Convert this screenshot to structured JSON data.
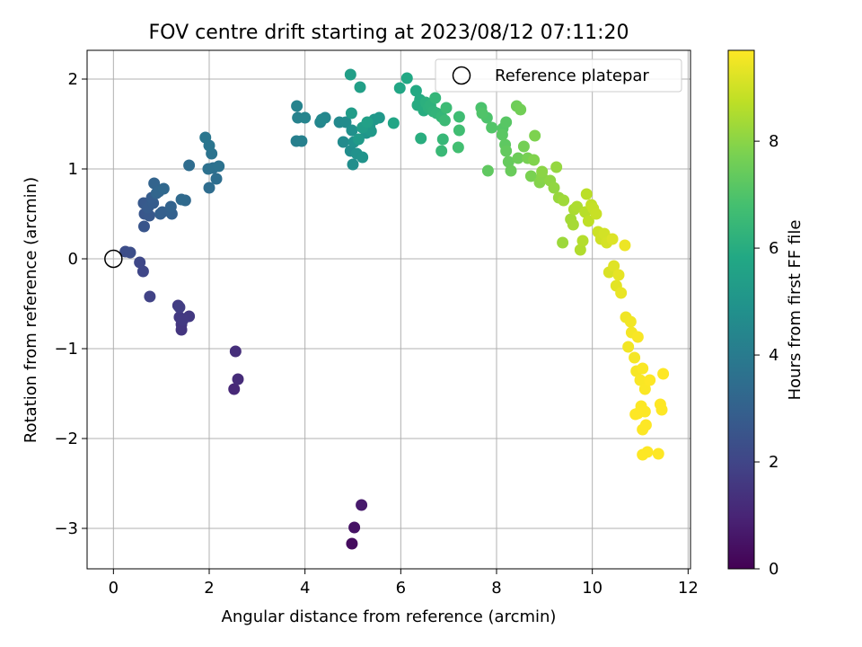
{
  "chart_data": {
    "type": "scatter",
    "title": "FOV centre drift starting at 2023/08/12 07:11:20",
    "xlabel": "Angular distance from reference (arcmin)",
    "ylabel": "Rotation from reference (arcmin)",
    "xlim": [
      -0.55,
      12.05
    ],
    "ylim": [
      -3.45,
      2.32
    ],
    "xticks": [
      0,
      2,
      4,
      6,
      8,
      10,
      12
    ],
    "xtick_labels": [
      "0",
      "2",
      "4",
      "6",
      "8",
      "10",
      "12"
    ],
    "yticks": [
      -3,
      -2,
      -1,
      0,
      1,
      2
    ],
    "ytick_labels": [
      "−3",
      "−2",
      "−1",
      "0",
      "1",
      "2"
    ],
    "grid": true,
    "legend": {
      "placement": "top-right",
      "label": "Reference platepar"
    },
    "reference_point": {
      "x": 0,
      "y": 0
    },
    "colorbar": {
      "label": "Hours from first FF file",
      "colormap": "viridis",
      "range": [
        0,
        9.7
      ],
      "ticks": [
        0,
        2,
        4,
        6,
        8
      ],
      "tick_labels": [
        "0",
        "2",
        "4",
        "6",
        "8"
      ]
    },
    "series": [
      {
        "points": [
          [
            4.98,
            -3.17,
            0.3
          ],
          [
            5.03,
            -2.99,
            0.5
          ],
          [
            5.18,
            -2.74,
            0.7
          ],
          [
            2.52,
            -1.45,
            1.1
          ],
          [
            2.6,
            -1.34,
            1.2
          ],
          [
            2.55,
            -1.03,
            1.3
          ],
          [
            1.42,
            -0.79,
            1.5
          ],
          [
            1.42,
            -0.73,
            1.55
          ],
          [
            1.38,
            -0.65,
            1.6
          ],
          [
            1.58,
            -0.64,
            1.6
          ],
          [
            1.45,
            -0.68,
            1.65
          ],
          [
            1.35,
            -0.52,
            1.7
          ],
          [
            1.38,
            -0.54,
            1.75
          ],
          [
            0.76,
            -0.42,
            1.9
          ],
          [
            0.62,
            -0.14,
            2.05
          ],
          [
            0.55,
            -0.04,
            2.1
          ],
          [
            0.25,
            0.08,
            2.25
          ],
          [
            0.35,
            0.07,
            2.3
          ],
          [
            0.64,
            0.36,
            2.55
          ],
          [
            0.65,
            0.5,
            2.6
          ],
          [
            0.75,
            0.48,
            2.65
          ],
          [
            0.63,
            0.62,
            2.7
          ],
          [
            0.72,
            0.57,
            2.75
          ],
          [
            0.83,
            0.62,
            2.8
          ],
          [
            0.8,
            0.68,
            2.85
          ],
          [
            0.98,
            0.5,
            2.9
          ],
          [
            1.02,
            0.52,
            2.95
          ],
          [
            1.22,
            0.5,
            3.0
          ],
          [
            1.2,
            0.58,
            3.05
          ],
          [
            0.85,
            0.84,
            3.1
          ],
          [
            0.9,
            0.73,
            3.15
          ],
          [
            0.95,
            0.75,
            3.2
          ],
          [
            1.05,
            0.78,
            3.25
          ],
          [
            1.5,
            0.65,
            3.3
          ],
          [
            1.42,
            0.66,
            3.35
          ],
          [
            1.58,
            1.04,
            3.4
          ],
          [
            2.0,
            0.79,
            3.45
          ],
          [
            2.15,
            0.89,
            3.5
          ],
          [
            2.08,
            1.01,
            3.55
          ],
          [
            1.98,
            1.0,
            3.6
          ],
          [
            2.2,
            1.03,
            3.65
          ],
          [
            2.05,
            1.17,
            3.7
          ],
          [
            2.0,
            1.26,
            3.75
          ],
          [
            1.92,
            1.35,
            3.8
          ],
          [
            3.82,
            1.31,
            4.15
          ],
          [
            3.93,
            1.31,
            4.2
          ],
          [
            3.85,
            1.57,
            4.25
          ],
          [
            3.83,
            1.7,
            4.3
          ],
          [
            4.0,
            1.57,
            4.35
          ],
          [
            4.32,
            1.52,
            4.4
          ],
          [
            4.42,
            1.57,
            4.45
          ],
          [
            4.35,
            1.55,
            4.5
          ],
          [
            4.72,
            1.52,
            4.55
          ],
          [
            4.8,
            1.3,
            4.6
          ],
          [
            4.85,
            1.52,
            4.65
          ],
          [
            4.95,
            1.2,
            4.7
          ],
          [
            5.0,
            1.05,
            4.75
          ],
          [
            4.98,
            1.43,
            4.8
          ],
          [
            5.02,
            1.3,
            4.85
          ],
          [
            5.08,
            1.17,
            4.9
          ],
          [
            5.2,
            1.13,
            4.95
          ],
          [
            5.28,
            1.4,
            5.0
          ],
          [
            5.35,
            1.47,
            5.05
          ],
          [
            5.45,
            1.55,
            5.1
          ],
          [
            5.55,
            1.57,
            5.15
          ],
          [
            5.38,
            1.42,
            5.2
          ],
          [
            5.12,
            1.33,
            5.25
          ],
          [
            4.97,
            1.62,
            5.3
          ],
          [
            5.2,
            1.46,
            5.35
          ],
          [
            4.95,
            2.05,
            5.4
          ],
          [
            5.15,
            1.91,
            5.45
          ],
          [
            5.3,
            1.52,
            5.5
          ],
          [
            5.85,
            1.51,
            5.7
          ],
          [
            5.98,
            1.9,
            5.75
          ],
          [
            6.13,
            2.01,
            5.8
          ],
          [
            6.32,
            1.87,
            5.85
          ],
          [
            6.4,
            1.77,
            5.9
          ],
          [
            6.35,
            1.71,
            5.95
          ],
          [
            6.48,
            1.65,
            6.0
          ],
          [
            6.42,
            1.34,
            6.05
          ],
          [
            6.52,
            1.74,
            6.1
          ],
          [
            6.58,
            1.68,
            6.15
          ],
          [
            6.62,
            1.71,
            6.2
          ],
          [
            6.68,
            1.64,
            6.25
          ],
          [
            6.75,
            1.62,
            6.3
          ],
          [
            6.72,
            1.79,
            6.35
          ],
          [
            6.85,
            1.58,
            6.4
          ],
          [
            6.88,
            1.33,
            6.45
          ],
          [
            6.85,
            1.2,
            6.5
          ],
          [
            6.92,
            1.54,
            6.55
          ],
          [
            6.95,
            1.68,
            6.6
          ],
          [
            7.22,
            1.58,
            6.65
          ],
          [
            7.22,
            1.43,
            6.7
          ],
          [
            7.2,
            1.24,
            6.75
          ],
          [
            7.68,
            1.68,
            6.9
          ],
          [
            7.8,
            1.57,
            6.95
          ],
          [
            7.7,
            1.62,
            7.0
          ],
          [
            7.9,
            1.46,
            7.05
          ],
          [
            8.13,
            1.45,
            7.1
          ],
          [
            8.2,
            1.52,
            7.15
          ],
          [
            8.12,
            1.38,
            7.2
          ],
          [
            8.18,
            1.27,
            7.25
          ],
          [
            7.82,
            0.98,
            7.3
          ],
          [
            8.2,
            1.2,
            7.35
          ],
          [
            8.25,
            1.08,
            7.4
          ],
          [
            8.3,
            0.98,
            7.45
          ],
          [
            8.45,
            1.12,
            7.5
          ],
          [
            8.42,
            1.7,
            7.55
          ],
          [
            8.5,
            1.66,
            7.6
          ],
          [
            8.57,
            1.25,
            7.65
          ],
          [
            8.65,
            1.12,
            7.7
          ],
          [
            8.72,
            0.92,
            7.75
          ],
          [
            8.8,
            1.37,
            7.8
          ],
          [
            8.78,
            1.1,
            7.85
          ],
          [
            8.9,
            0.85,
            7.9
          ],
          [
            8.95,
            0.91,
            7.95
          ],
          [
            8.95,
            0.97,
            8.0
          ],
          [
            9.12,
            0.87,
            8.05
          ],
          [
            9.2,
            0.79,
            8.1
          ],
          [
            9.25,
            1.02,
            8.15
          ],
          [
            9.3,
            0.68,
            8.2
          ],
          [
            9.38,
            0.18,
            8.25
          ],
          [
            9.4,
            0.65,
            8.3
          ],
          [
            9.55,
            0.44,
            8.35
          ],
          [
            9.6,
            0.38,
            8.4
          ],
          [
            9.62,
            0.55,
            8.45
          ],
          [
            9.68,
            0.58,
            8.5
          ],
          [
            9.75,
            0.1,
            8.55
          ],
          [
            9.8,
            0.2,
            8.6
          ],
          [
            9.85,
            0.52,
            8.65
          ],
          [
            9.88,
            0.72,
            8.7
          ],
          [
            9.92,
            0.42,
            8.75
          ],
          [
            9.98,
            0.6,
            8.8
          ],
          [
            10.02,
            0.56,
            8.85
          ],
          [
            10.08,
            0.5,
            8.9
          ],
          [
            10.12,
            0.3,
            8.95
          ],
          [
            10.18,
            0.22,
            9.0
          ],
          [
            10.25,
            0.28,
            9.05
          ],
          [
            10.3,
            0.18,
            9.1
          ],
          [
            10.35,
            -0.15,
            9.15
          ],
          [
            10.42,
            0.22,
            9.2
          ],
          [
            10.45,
            -0.08,
            9.25
          ],
          [
            10.5,
            -0.3,
            9.3
          ],
          [
            10.55,
            -0.18,
            9.35
          ],
          [
            10.6,
            -0.38,
            9.4
          ],
          [
            10.68,
            0.15,
            9.45
          ],
          [
            10.7,
            -0.65,
            9.5
          ],
          [
            10.8,
            -0.7,
            9.52
          ],
          [
            10.75,
            -0.98,
            9.54
          ],
          [
            10.82,
            -0.82,
            9.56
          ],
          [
            10.88,
            -1.1,
            9.58
          ],
          [
            10.92,
            -1.25,
            9.6
          ],
          [
            10.95,
            -0.87,
            9.62
          ],
          [
            11.0,
            -1.35,
            9.64
          ],
          [
            11.05,
            -1.22,
            9.65
          ],
          [
            11.1,
            -1.45,
            9.66
          ],
          [
            11.02,
            -1.64,
            9.67
          ],
          [
            11.1,
            -1.7,
            9.68
          ],
          [
            11.05,
            -1.9,
            9.69
          ],
          [
            10.95,
            -1.72,
            9.7
          ],
          [
            11.12,
            -1.85,
            9.7
          ],
          [
            11.05,
            -2.18,
            9.7
          ],
          [
            11.15,
            -2.15,
            9.7
          ],
          [
            11.38,
            -2.17,
            9.7
          ],
          [
            11.42,
            -1.62,
            9.7
          ],
          [
            11.45,
            -1.68,
            9.7
          ],
          [
            11.48,
            -1.28,
            9.7
          ],
          [
            10.9,
            -1.73,
            9.7
          ],
          [
            11.2,
            -1.35,
            9.7
          ]
        ]
      }
    ]
  }
}
